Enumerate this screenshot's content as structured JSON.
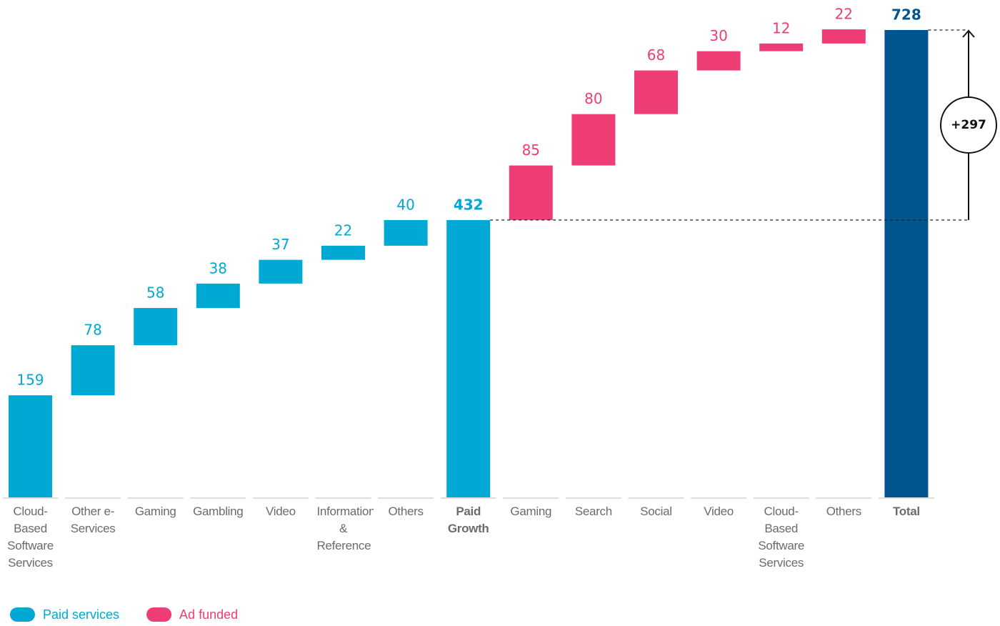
{
  "chart_data": {
    "type": "waterfall",
    "categories": [
      "Cloud-Based Software Services",
      "Other e-Services",
      "Gaming",
      "Gambling",
      "Video",
      "Information & Reference",
      "Others",
      "Paid Growth",
      "Gaming",
      "Search",
      "Social",
      "Video",
      "Cloud-Based Software Services",
      "Others",
      "Total"
    ],
    "series": [
      {
        "name": "Paid services",
        "color": "#00a9d4",
        "values": [
          159,
          78,
          58,
          38,
          37,
          22,
          40,
          null,
          null,
          null,
          null,
          null,
          null,
          null,
          null
        ]
      },
      {
        "name": "Ad funded",
        "color": "#ee3d75",
        "values": [
          null,
          null,
          null,
          null,
          null,
          null,
          null,
          null,
          85,
          80,
          68,
          30,
          12,
          22,
          null
        ]
      }
    ],
    "totals": {
      "values": [
        null,
        null,
        null,
        null,
        null,
        null,
        null,
        432,
        null,
        null,
        null,
        null,
        null,
        null,
        728
      ],
      "colors": [
        null,
        null,
        null,
        null,
        null,
        null,
        null,
        "#00a9d4",
        null,
        null,
        null,
        null,
        null,
        null,
        "#00558f"
      ]
    },
    "annotation": "+297"
  }
}
